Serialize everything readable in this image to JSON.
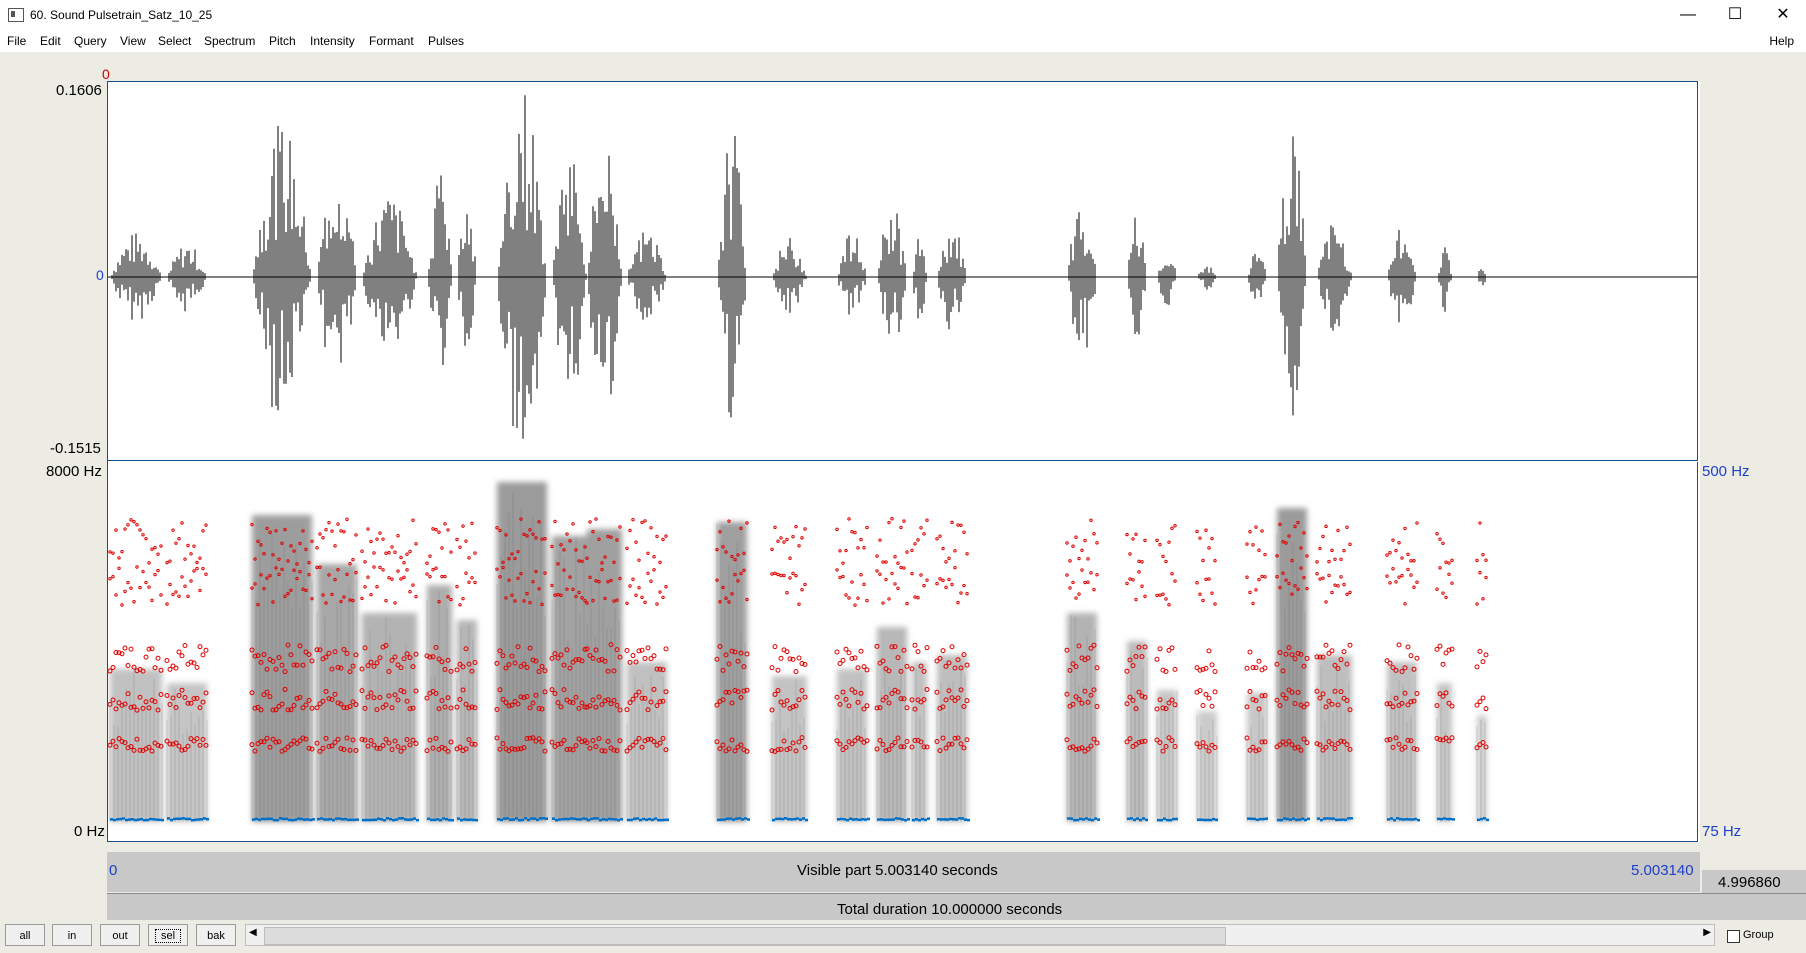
{
  "window": {
    "title": "60. Sound Pulsetrain_Satz_10_25",
    "minimize": "—",
    "maximize": "☐",
    "close": "✕"
  },
  "menu": {
    "items": [
      "File",
      "Edit",
      "Query",
      "View",
      "Select",
      "Spectrum",
      "Pitch",
      "Intensity",
      "Formant",
      "Pulses"
    ],
    "help": "Help"
  },
  "waveform": {
    "cursor_label": "0",
    "y_max": "0.1606",
    "y_zero": "0",
    "y_min": "-0.1515"
  },
  "spectrogram": {
    "freq_max": "8000 Hz",
    "freq_min": "0 Hz",
    "pitch_max": "500 Hz",
    "pitch_min": "75 Hz"
  },
  "time": {
    "start": "0",
    "end": "5.003140",
    "visible": "Visible part 5.003140 seconds",
    "remaining": "4.996860",
    "total": "Total duration 10.000000 seconds"
  },
  "buttons": {
    "all": "all",
    "in": "in",
    "out": "out",
    "sel": "sel",
    "bak": "bak"
  },
  "scroll": {
    "left": "◀",
    "right": "▶"
  },
  "group_label": "Group",
  "colors": {
    "waveform": "#000000",
    "formant": "#e00000",
    "pitch": "#0070c8",
    "border": "#1a4f8b"
  }
}
